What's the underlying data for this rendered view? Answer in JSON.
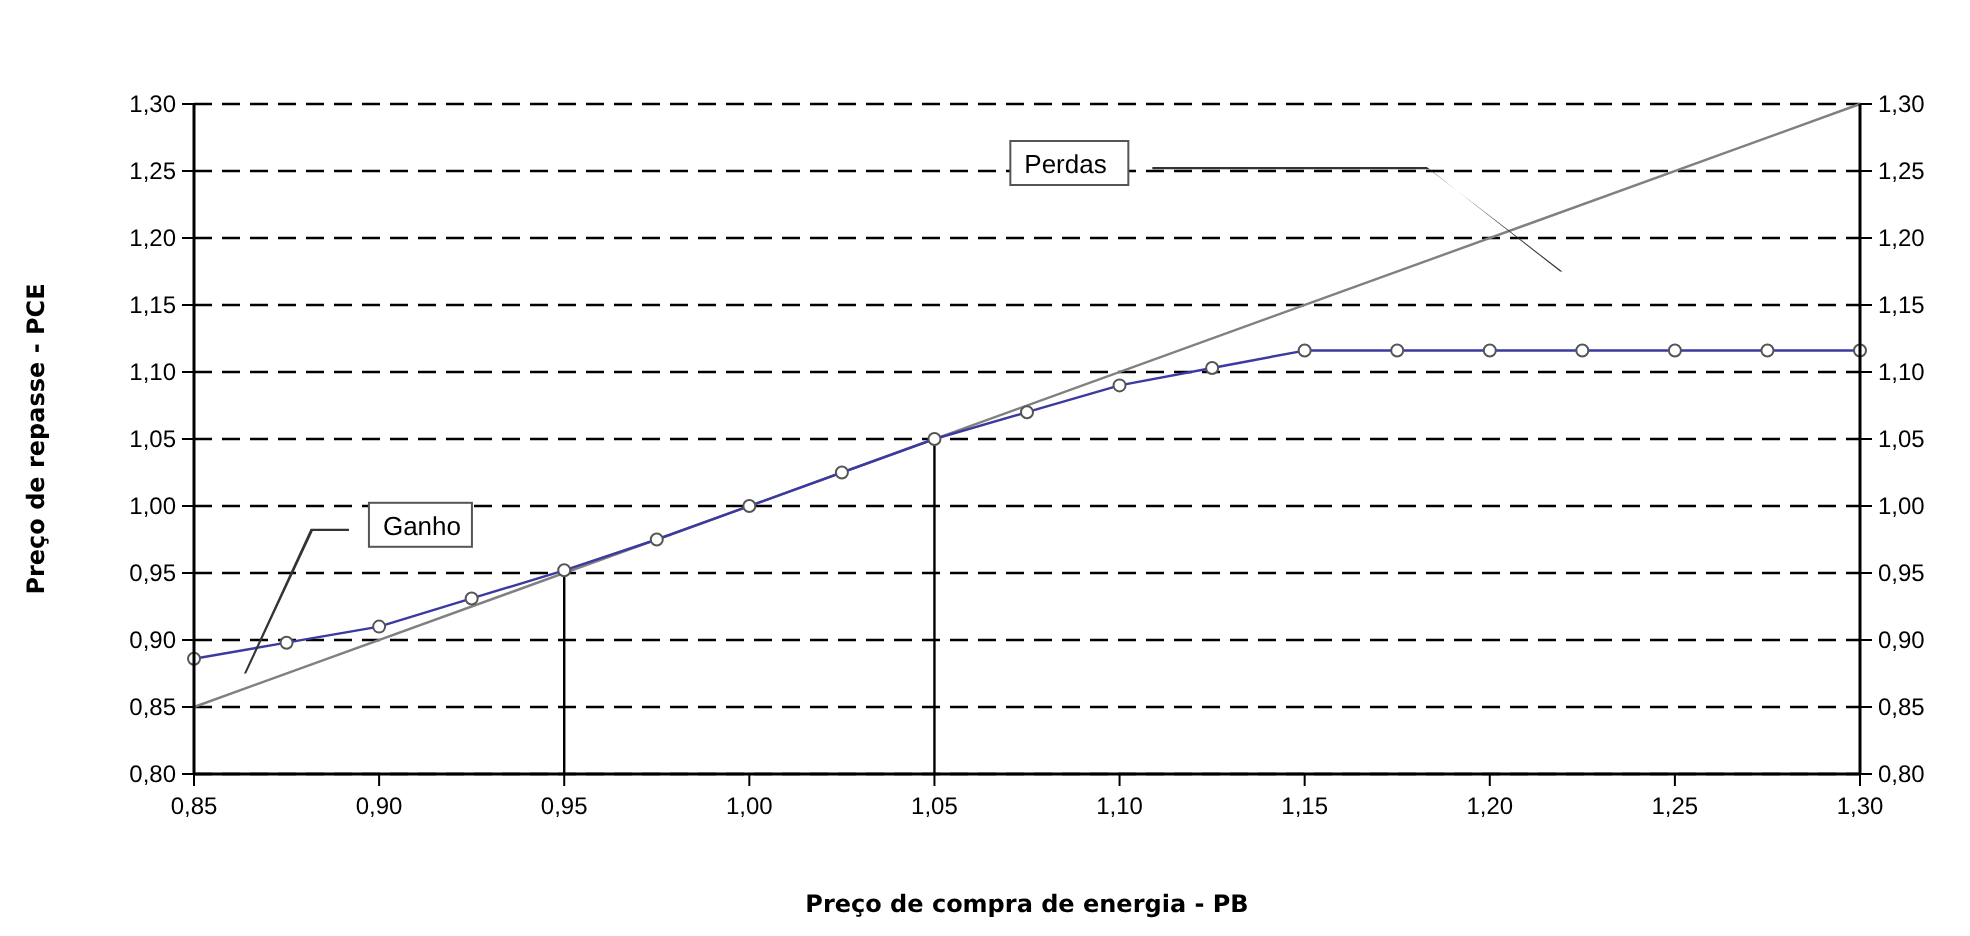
{
  "chart_data": {
    "type": "line",
    "xlabel": "Preço de compra de energia - PB",
    "ylabel": "Preço de repasse - PCE",
    "xlim": [
      0.85,
      1.3
    ],
    "ylim": [
      0.8,
      1.3
    ],
    "y2lim": [
      0.8,
      1.3
    ],
    "xticks": [
      {
        "value": 0.85,
        "label": "0,85"
      },
      {
        "value": 0.9,
        "label": "0,90"
      },
      {
        "value": 0.95,
        "label": "0,95"
      },
      {
        "value": 1.0,
        "label": "1,00"
      },
      {
        "value": 1.05,
        "label": "1,05"
      },
      {
        "value": 1.1,
        "label": "1,10"
      },
      {
        "value": 1.15,
        "label": "1,15"
      },
      {
        "value": 1.2,
        "label": "1,20"
      },
      {
        "value": 1.25,
        "label": "1,25"
      },
      {
        "value": 1.3,
        "label": "1,30"
      }
    ],
    "yticks": [
      {
        "value": 0.8,
        "label": "0,80"
      },
      {
        "value": 0.85,
        "label": "0,85"
      },
      {
        "value": 0.9,
        "label": "0,90"
      },
      {
        "value": 0.95,
        "label": "0,95"
      },
      {
        "value": 1.0,
        "label": "1,00"
      },
      {
        "value": 1.05,
        "label": "1,05"
      },
      {
        "value": 1.1,
        "label": "1,10"
      },
      {
        "value": 1.15,
        "label": "1,15"
      },
      {
        "value": 1.2,
        "label": "1,20"
      },
      {
        "value": 1.25,
        "label": "1,25"
      },
      {
        "value": 1.3,
        "label": "1,30"
      }
    ],
    "y2ticks": [
      {
        "value": 0.8,
        "label": "0,80"
      },
      {
        "value": 0.85,
        "label": "0,85"
      },
      {
        "value": 0.9,
        "label": "0,90"
      },
      {
        "value": 0.95,
        "label": "0,95"
      },
      {
        "value": 1.0,
        "label": "1,00"
      },
      {
        "value": 1.05,
        "label": "1,05"
      },
      {
        "value": 1.1,
        "label": "1,10"
      },
      {
        "value": 1.15,
        "label": "1,15"
      },
      {
        "value": 1.2,
        "label": "1,20"
      },
      {
        "value": 1.25,
        "label": "1,25"
      },
      {
        "value": 1.3,
        "label": "1,30"
      }
    ],
    "grid": "y",
    "line_style": "solid",
    "series": [
      {
        "color": "#808080",
        "marker": "none",
        "x": [
          0.85,
          1.3
        ],
        "values": [
          0.85,
          1.3
        ]
      },
      {
        "color": "#000000",
        "x": [
          0.95,
          0.95
        ],
        "values": [
          0.8,
          0.952
        ]
      },
      {
        "color": "#000000",
        "x": [
          1.05,
          1.05
        ],
        "values": [
          0.8,
          1.05
        ]
      },
      {
        "color": "#3a3aa0",
        "marker": "circle",
        "x": [
          0.85,
          0.875,
          0.9,
          0.925,
          0.95,
          0.975,
          1.0,
          1.025,
          1.05,
          1.075,
          1.1,
          1.125,
          1.15,
          1.175,
          1.2,
          1.225,
          1.25,
          1.275,
          1.3
        ],
        "values": [
          0.886,
          0.898,
          0.91,
          0.931,
          0.952,
          0.975,
          1.0,
          1.025,
          1.05,
          1.07,
          1.09,
          1.103,
          1.116,
          1.116,
          1.116,
          1.116,
          1.116,
          1.116,
          1.116
        ]
      }
    ],
    "annotations": [
      "Perdas",
      "Ganho"
    ]
  }
}
